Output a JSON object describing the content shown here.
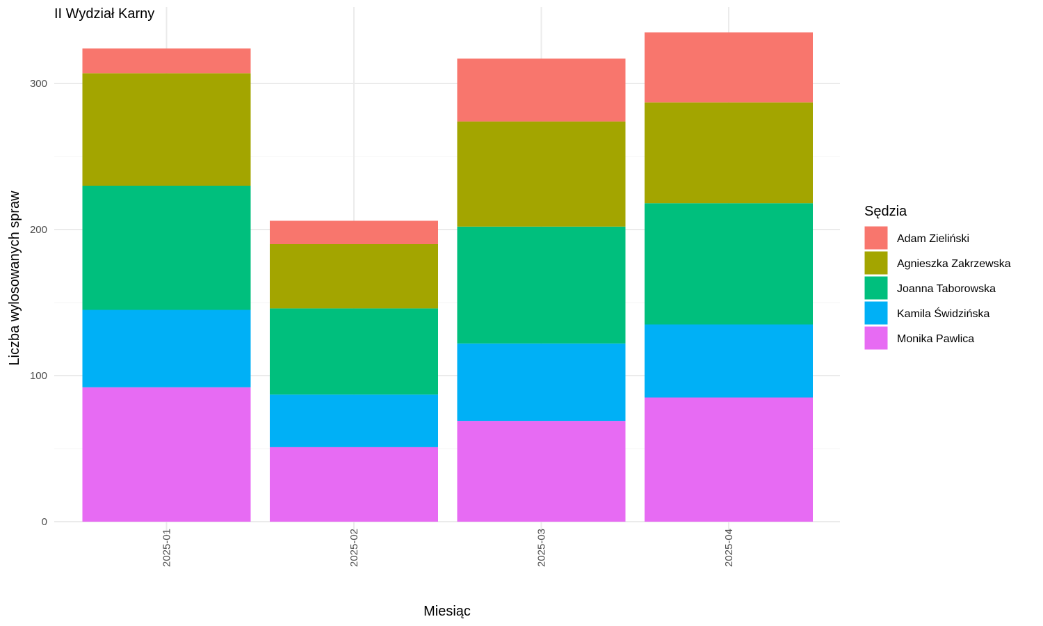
{
  "chart_data": {
    "type": "bar",
    "stacked": true,
    "title": "II Wydział Karny",
    "xlabel": "Miesiąc",
    "ylabel": "Liczba wylosowanych spraw",
    "ylim": [
      0,
      335
    ],
    "yticks": [
      0,
      100,
      200,
      300
    ],
    "grid": true,
    "legend_title": "Sędzia",
    "legend_position": "right",
    "categories": [
      "2025-01",
      "2025-02",
      "2025-03",
      "2025-04"
    ],
    "series": [
      {
        "name": "Monika Pawlica",
        "color": "#E76BF3",
        "values": [
          92,
          51,
          69,
          85
        ]
      },
      {
        "name": "Kamila Świdzińska",
        "color": "#00B0F6",
        "values": [
          53,
          36,
          53,
          50
        ]
      },
      {
        "name": "Joanna Taborowska",
        "color": "#00BF7D",
        "values": [
          85,
          59,
          80,
          83
        ]
      },
      {
        "name": "Agnieszka Zakrzewska",
        "color": "#A3A500",
        "values": [
          77,
          44,
          72,
          69
        ]
      },
      {
        "name": "Adam Zieliński",
        "color": "#F8766D",
        "values": [
          17,
          16,
          43,
          48
        ]
      }
    ],
    "legend_order": [
      "Adam Zieliński",
      "Agnieszka Zakrzewska",
      "Joanna Taborowska",
      "Kamila Świdzińska",
      "Monika Pawlica"
    ]
  }
}
